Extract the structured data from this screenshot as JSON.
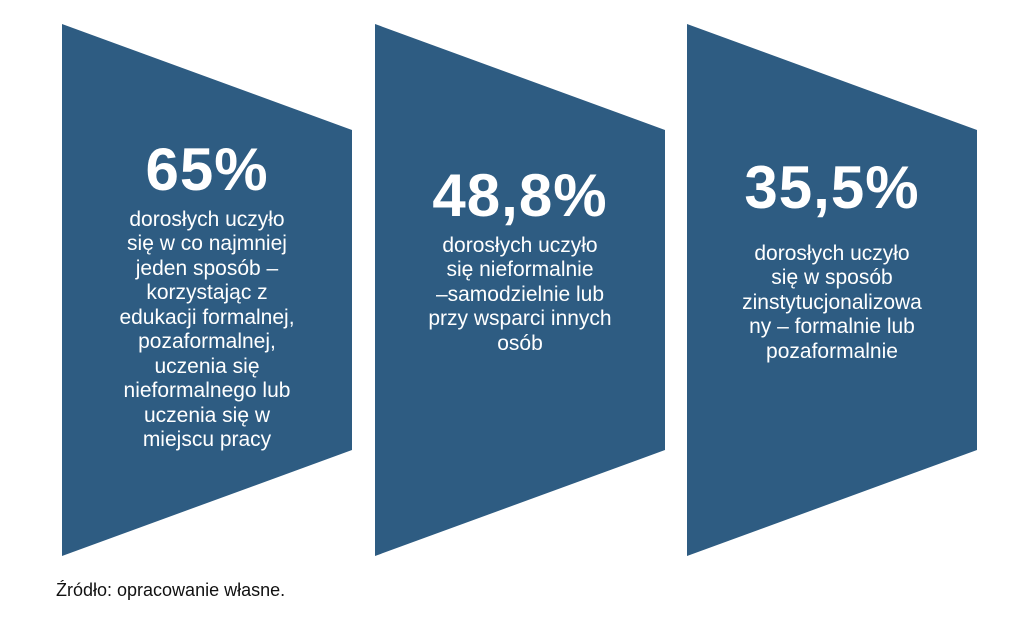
{
  "colors": {
    "shape_fill": "#2E5C82",
    "text": "#ffffff"
  },
  "items": [
    {
      "value": "65%",
      "lines": [
        "dorosłych uczyło",
        "się w co najmniej",
        "jeden sposób –",
        "korzystając z",
        "edukacji formalnej,",
        "pozaformalnej,",
        "uczenia się",
        "nieformalnego lub",
        "uczenia się w",
        "miejscu pracy"
      ]
    },
    {
      "value": "48,8%",
      "lines": [
        "dorosłych uczyło",
        "się nieformalnie",
        "–samodzielnie lub",
        "przy wsparci innych",
        "osób"
      ]
    },
    {
      "value": "35,5%",
      "lines": [
        "dorosłych uczyło",
        "się w sposób",
        "zinstytucjonalizowa",
        "ny – formalnie lub",
        "pozaformalnie"
      ]
    }
  ],
  "source": "Źródło: opracowanie własne."
}
